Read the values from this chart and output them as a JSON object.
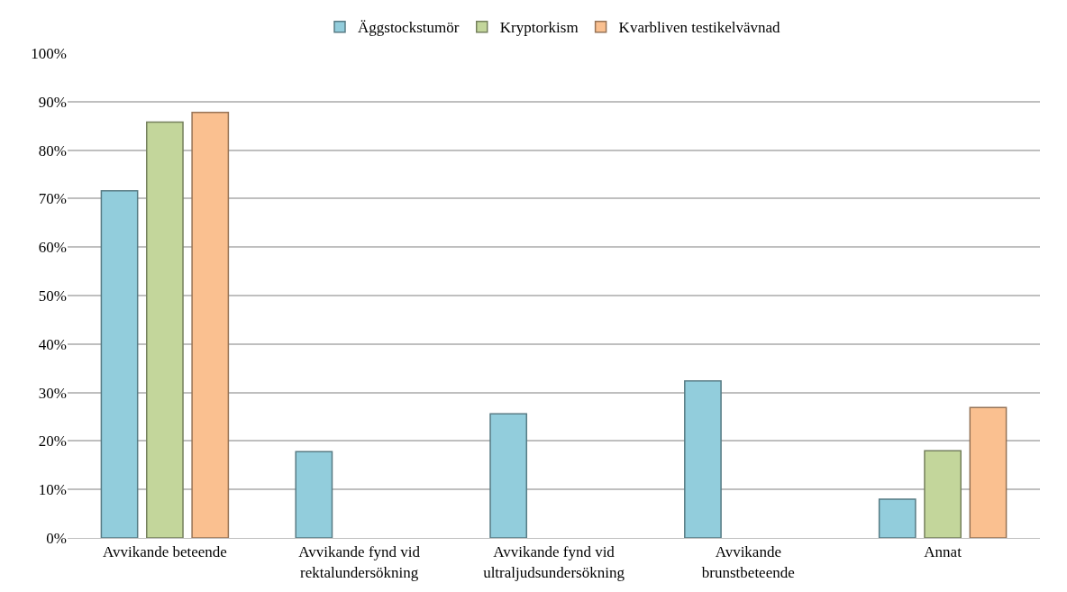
{
  "chart_data": {
    "type": "bar",
    "categories": [
      "Avvikande beteende",
      "Avvikande fynd vid\nrektalundersökning",
      "Avvikande fynd vid\nultraljudsundersökning",
      "Avvikande\nbrunstbeteende",
      "Annat"
    ],
    "series": [
      {
        "name": "Äggstockstumör",
        "color": "#92cddc",
        "values": [
          71.6,
          17.8,
          25.6,
          32.4,
          8.0
        ]
      },
      {
        "name": "Kryptorkism",
        "color": "#c3d69b",
        "values": [
          85.8,
          null,
          null,
          null,
          18.0
        ]
      },
      {
        "name": "Kvarbliven testikelvävnad",
        "color": "#fac090",
        "values": [
          87.8,
          null,
          null,
          null,
          26.9
        ]
      }
    ],
    "ylim": [
      0,
      100
    ],
    "yticks": [
      {
        "value": 0,
        "label": "0%"
      },
      {
        "value": 10,
        "label": "10%"
      },
      {
        "value": 20,
        "label": "20%"
      },
      {
        "value": 30,
        "label": "30%"
      },
      {
        "value": 40,
        "label": "40%"
      },
      {
        "value": 50,
        "label": "50%"
      },
      {
        "value": 60,
        "label": "60%"
      },
      {
        "value": 70,
        "label": "70%"
      },
      {
        "value": 80,
        "label": "80%"
      },
      {
        "value": 90,
        "label": "90%"
      },
      {
        "value": 100,
        "label": "100%"
      }
    ],
    "grid": "y",
    "legend": "top"
  }
}
